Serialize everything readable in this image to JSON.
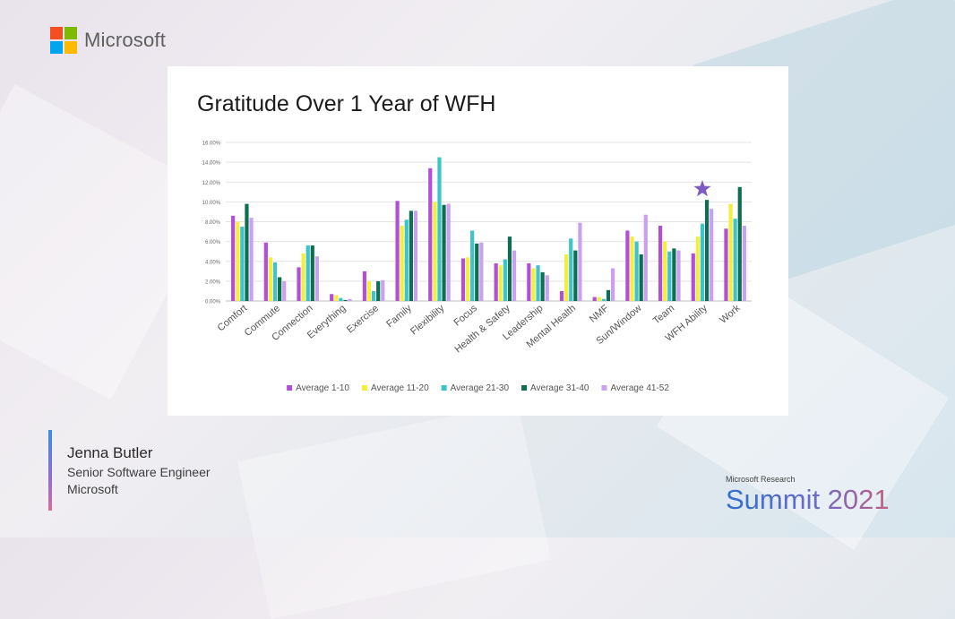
{
  "brand": {
    "name": "Microsoft",
    "logo_colors": [
      "#f25022",
      "#7fba00",
      "#00a4ef",
      "#ffb900"
    ]
  },
  "slide": {
    "title": "Gratitude Over 1 Year of WFH"
  },
  "chart_data": {
    "type": "bar",
    "title": "Gratitude Over 1 Year of WFH",
    "xlabel": "",
    "ylabel": "",
    "ylim": [
      0,
      16
    ],
    "yticks": [
      "0.00%",
      "2.00%",
      "4.00%",
      "6.00%",
      "8.00%",
      "10.00%",
      "12.00%",
      "14.00%",
      "16.00%"
    ],
    "grid": true,
    "legend_position": "bottom",
    "categories": [
      "Comfort",
      "Commute",
      "Connection",
      "Everything",
      "Exercise",
      "Family",
      "Flexibility",
      "Focus",
      "Health & Safety",
      "Leadership",
      "Mental Health",
      "NMF",
      "Sun/Window",
      "Team",
      "WFH Ability",
      "Work"
    ],
    "series": [
      {
        "name": "Average 1-10",
        "color": "#b24fd6",
        "values": [
          8.6,
          5.9,
          3.4,
          0.7,
          3.0,
          10.1,
          13.4,
          4.3,
          3.8,
          3.8,
          1.0,
          0.4,
          7.1,
          7.6,
          4.8,
          7.3
        ]
      },
      {
        "name": "Average 11-20",
        "color": "#f5ef3c",
        "values": [
          8.0,
          4.4,
          4.8,
          0.6,
          2.0,
          7.6,
          10.0,
          4.4,
          3.6,
          3.3,
          4.7,
          0.4,
          6.5,
          6.0,
          6.5,
          9.8
        ]
      },
      {
        "name": "Average 21-30",
        "color": "#3cc4c8",
        "values": [
          7.5,
          3.9,
          5.6,
          0.3,
          1.0,
          8.2,
          14.5,
          7.1,
          4.2,
          3.6,
          6.3,
          0.2,
          6.0,
          5.0,
          7.8,
          8.3
        ]
      },
      {
        "name": "Average 31-40",
        "color": "#0f6e52",
        "values": [
          9.8,
          2.4,
          5.6,
          0.1,
          2.0,
          9.1,
          9.7,
          5.8,
          6.5,
          2.9,
          5.1,
          1.1,
          4.7,
          5.3,
          10.2,
          11.5
        ]
      },
      {
        "name": "Average 41-52",
        "color": "#caa1ef",
        "values": [
          8.4,
          2.0,
          4.5,
          0.2,
          2.1,
          9.1,
          9.8,
          5.9,
          5.1,
          2.6,
          7.9,
          3.3,
          8.7,
          5.1,
          9.3,
          7.6
        ]
      }
    ],
    "annotations": [
      {
        "type": "star",
        "category": "WFH Ability",
        "value": 11.3,
        "color": "#7e5bc2"
      }
    ]
  },
  "speaker": {
    "name": "Jenna Butler",
    "role": "Senior Software Engineer",
    "org": "Microsoft"
  },
  "event": {
    "small": "Microsoft Research",
    "big": "Summit 2021"
  }
}
